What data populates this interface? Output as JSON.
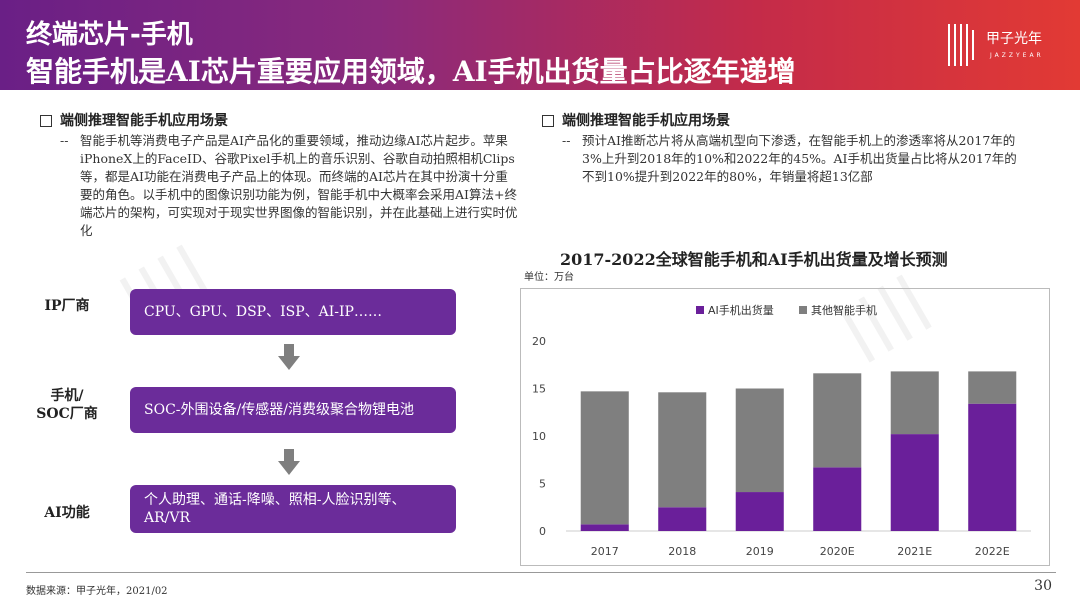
{
  "header": {
    "title_line1": "终端芯片-手机",
    "title_line2": "智能手机是AI芯片重要应用领域，AI手机出货量占比逐年递增",
    "logo_name": "甲子光年",
    "logo_en": "JAZZYEAR"
  },
  "left": {
    "heading": "端侧推理智能手机应用场景",
    "bullet": "智能手机等消费电子产品是AI产品化的重要领域，推动边缘AI芯片起步。苹果iPhoneX上的FaceID、谷歌Pixel手机上的音乐识别、谷歌自动拍照相机Clips等，都是AI功能在消费电子产品上的体现。而终端的AI芯片在其中扮演十分重要的角色。以手机中的图像识别功能为例，智能手机中大概率会采用AI算法+终端芯片的架构，可实现对于现实世界图像的智能识别，并在此基础上进行实时优化"
  },
  "right": {
    "heading": "端侧推理智能手机应用场景",
    "bullet": "预计AI推断芯片将从高端机型向下渗透，在智能手机上的渗透率将从2017年的3%上升到2018年的10%和2022年的45%。AI手机出货量占比将从2017年的不到10%提升到2022年的80%，年销量将超13亿部"
  },
  "flow": {
    "rows": [
      {
        "label": "IP厂商",
        "text": "CPU、GPU、DSP、ISP、AI-IP……"
      },
      {
        "label": "手机/\nSOC厂商",
        "text": "SOC-外围设备/传感器/消费级聚合物锂电池"
      },
      {
        "label": "AI功能",
        "text": "个人助理、通话-降噪、照相-人脸识别等、AR/VR"
      }
    ]
  },
  "chart_data": {
    "type": "bar",
    "stacked": true,
    "title": "2017-2022全球智能手机和AI手机出货量及增长预测",
    "unit": "单位：万台",
    "categories": [
      "2017",
      "2018",
      "2019",
      "2020E",
      "2021E",
      "2022E"
    ],
    "series": [
      {
        "name": "AI手机出货量",
        "color": "#6a1f9a",
        "values": [
          0.7,
          2.5,
          4.1,
          6.7,
          10.2,
          13.4
        ]
      },
      {
        "name": "其他智能手机",
        "color": "#7f7f7f",
        "values": [
          14.0,
          12.1,
          10.9,
          9.9,
          6.6,
          3.4
        ]
      }
    ],
    "ylim": [
      0,
      20
    ],
    "yticks": [
      0,
      5,
      10,
      15,
      20
    ],
    "legend_position": "top"
  },
  "footer": {
    "source": "数据来源：甲子光年，2021/02",
    "page": "30"
  }
}
